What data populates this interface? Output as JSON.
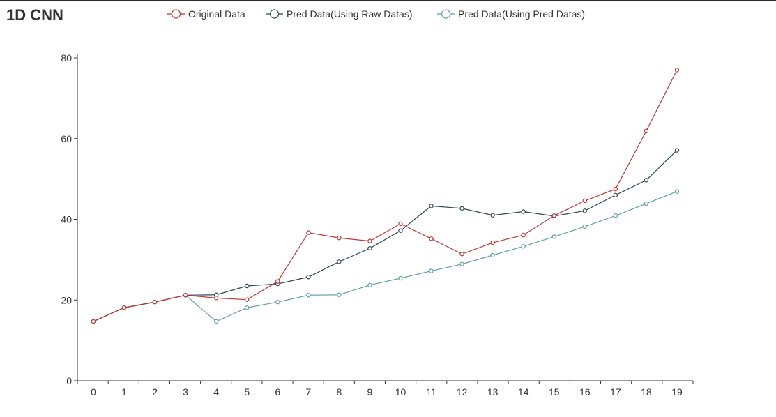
{
  "title": "1D CNN",
  "chart_data": {
    "type": "line",
    "title": "1D CNN",
    "xlabel": "",
    "ylabel": "",
    "categories": [
      "0",
      "1",
      "2",
      "3",
      "4",
      "5",
      "6",
      "7",
      "8",
      "9",
      "10",
      "11",
      "12",
      "13",
      "14",
      "15",
      "16",
      "17",
      "18",
      "19"
    ],
    "ylim": [
      0,
      80
    ],
    "yticks": [
      "0",
      "20",
      "40",
      "60",
      "80"
    ],
    "legend_position": "top-center",
    "grid": false,
    "series": [
      {
        "name": "Original Data",
        "color": "#c23531",
        "values": [
          14.7,
          18.1,
          19.5,
          21.2,
          20.5,
          20.1,
          24.6,
          36.7,
          35.4,
          34.6,
          38.9,
          35.2,
          31.4,
          34.2,
          36.1,
          40.9,
          44.6,
          47.5,
          61.9,
          77.0
        ]
      },
      {
        "name": "Pred Data(Using Raw Datas)",
        "color": "#2f4554",
        "values": [
          14.7,
          18.1,
          19.5,
          21.2,
          21.3,
          23.5,
          24.0,
          25.7,
          29.5,
          32.8,
          37.2,
          43.3,
          42.7,
          41.0,
          41.9,
          40.8,
          42.1,
          46.0,
          49.7,
          57.1
        ]
      },
      {
        "name": "Pred Data(Using Pred Datas)",
        "color": "#61a0a8",
        "values": [
          14.7,
          18.1,
          19.5,
          21.2,
          14.7,
          18.1,
          19.5,
          21.2,
          21.3,
          23.7,
          25.4,
          27.2,
          28.9,
          31.1,
          33.3,
          35.7,
          38.2,
          40.9,
          43.9,
          46.9
        ]
      }
    ]
  }
}
